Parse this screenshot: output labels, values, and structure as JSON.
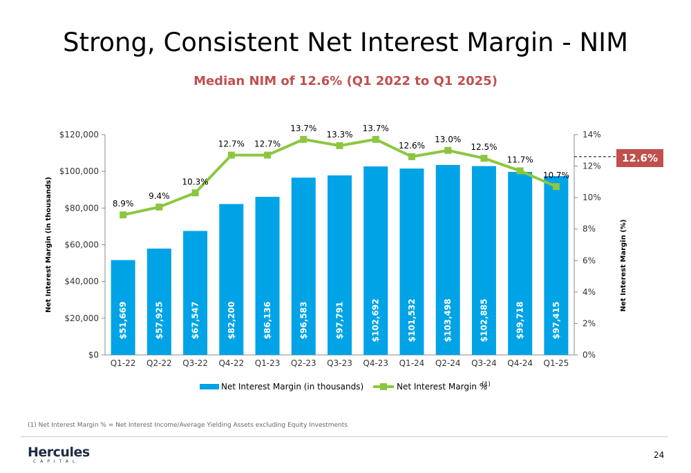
{
  "title": "Strong, Consistent Net Interest Margin - NIM",
  "subtitle": "Median NIM of 12.6% (Q1 2022 to Q1 2025)",
  "median_badge": "12.6%",
  "footnote": "(1) Net Interest Margin % = Net Interest Income/Average Yielding Assets excluding Equity Investments",
  "page_number": "24",
  "logo": {
    "main": "Hercules",
    "sub": "CAPITAL"
  },
  "colors": {
    "bar": "#00a3e6",
    "line": "#8cc63f",
    "accent": "#c0504d"
  },
  "chart_data": {
    "type": "bar",
    "categories": [
      "Q1-22",
      "Q2-22",
      "Q3-22",
      "Q4-22",
      "Q1-23",
      "Q2-23",
      "Q3-23",
      "Q4-23",
      "Q1-24",
      "Q2-24",
      "Q3-24",
      "Q4-24",
      "Q1-25"
    ],
    "series": [
      {
        "name": "Net Interest Margin (in thousands)",
        "type": "bar",
        "axis": "left",
        "values": [
          51669,
          57925,
          67547,
          82200,
          86136,
          96583,
          97791,
          102692,
          101532,
          103498,
          102885,
          99718,
          97415
        ],
        "labels": [
          "$51,669",
          "$57,925",
          "$67,547",
          "$82,200",
          "$86,136",
          "$96,583",
          "$97,791",
          "$102,692",
          "$101,532",
          "$103,498",
          "$102,885",
          "$99,718",
          "$97,415"
        ]
      },
      {
        "name": "Net Interest Margin %",
        "legend_suffix": "(1)",
        "type": "line",
        "axis": "right",
        "values": [
          8.9,
          9.4,
          10.3,
          12.7,
          12.7,
          13.7,
          13.3,
          13.7,
          12.6,
          13.0,
          12.5,
          11.7,
          10.7
        ],
        "labels": [
          "8.9%",
          "9.4%",
          "10.3%",
          "12.7%",
          "12.7%",
          "13.7%",
          "13.3%",
          "13.7%",
          "12.6%",
          "13.0%",
          "12.5%",
          "11.7%",
          "10.7%"
        ]
      }
    ],
    "ylabel": "Net Interest Margin  (in thousands)",
    "y2label": "Net Interest Margin (%)",
    "ylim": [
      0,
      120000
    ],
    "y2lim": [
      0,
      14
    ],
    "yticks": [
      "$0",
      "$20,000",
      "$40,000",
      "$60,000",
      "$80,000",
      "$100,000",
      "$120,000"
    ],
    "y2ticks": [
      "0%",
      "2%",
      "4%",
      "6%",
      "8%",
      "10%",
      "12%",
      "14%"
    ],
    "median_value": 12.6,
    "legend_position": "bottom",
    "grid": false
  }
}
